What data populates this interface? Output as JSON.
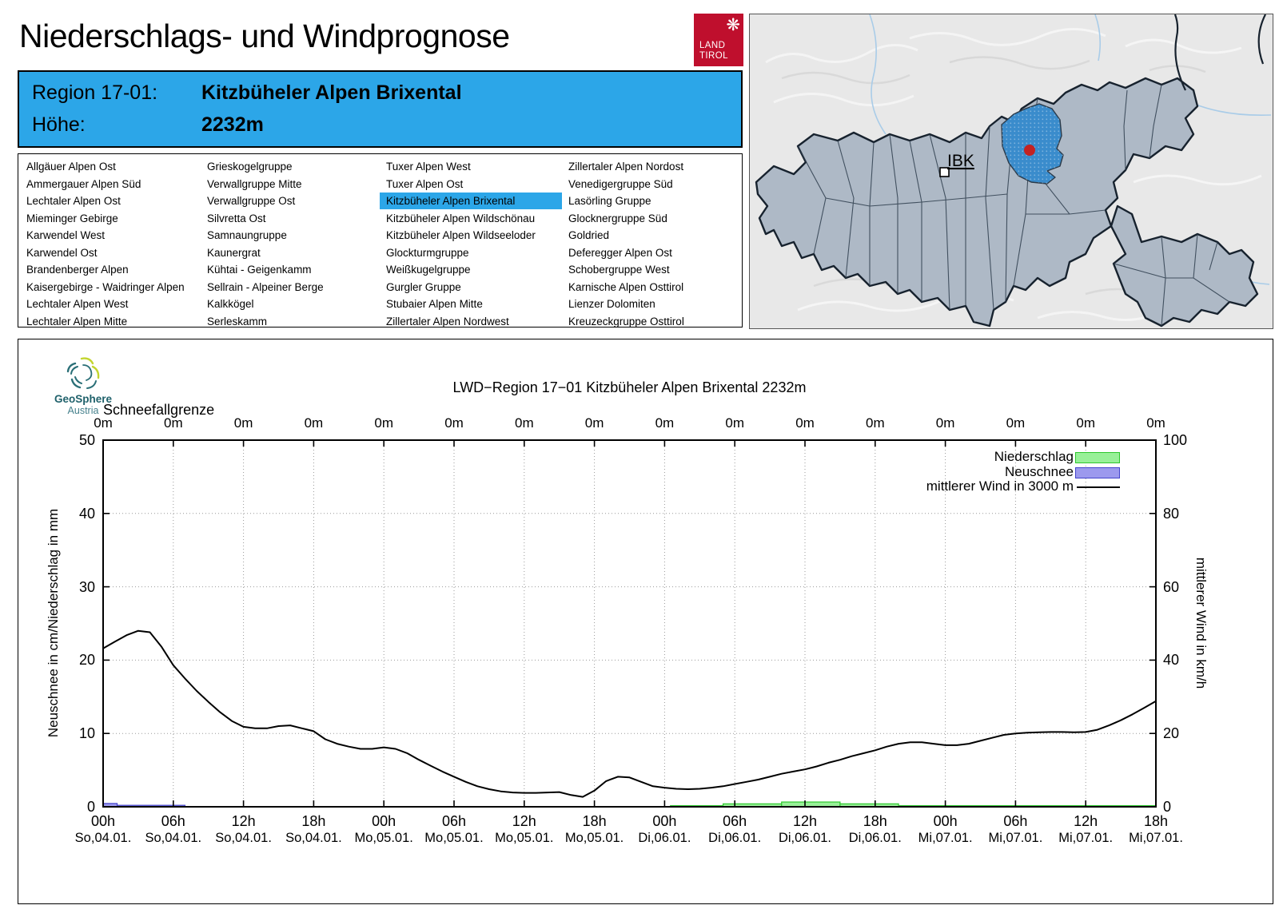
{
  "header": {
    "title": "Niederschlags- und Windprognose",
    "logo": {
      "line1": "LAND",
      "line2": "TIROL",
      "color": "#bf0f2d",
      "emblem": "eagle-icon"
    },
    "region_label": "Region 17-01:",
    "region_name": "Kitzbüheler Alpen Brixental",
    "altitude_label": "Höhe:",
    "altitude_value": "2232m",
    "box_color": "#2ca6e8"
  },
  "region_list": {
    "selected": "Kitzbüheler Alpen Brixental",
    "highlight_color": "#2ca6e8",
    "columns": [
      [
        "Allgäuer Alpen Ost",
        "Ammergauer Alpen Süd",
        "Lechtaler Alpen Ost",
        "Mieminger Gebirge",
        "Karwendel West",
        "Karwendel Ost",
        "Brandenberger Alpen",
        "Kaisergebirge - Waidringer Alpen",
        "Lechtaler Alpen West",
        "Lechtaler Alpen Mitte"
      ],
      [
        "Grieskogelgruppe",
        "Verwallgruppe Mitte",
        "Verwallgruppe Ost",
        "Silvretta Ost",
        "Samnaungruppe",
        "Kaunergrat",
        "Kühtai - Geigenkamm",
        "Sellrain - Alpeiner Berge",
        "Kalkkögel",
        "Serleskamm"
      ],
      [
        "Tuxer Alpen West",
        "Tuxer Alpen Ost",
        "Kitzbüheler Alpen Brixental",
        "Kitzbüheler Alpen Wildschönau",
        "Kitzbüheler Alpen Wildseeloder",
        "Glockturmgruppe",
        "Weißkugelgruppe",
        "Gurgler Gruppe",
        "Stubaier Alpen Mitte",
        "Zillertaler Alpen Nordwest"
      ],
      [
        "Zillertaler Alpen Nordost",
        "Venedigergruppe Süd",
        "Lasörling Gruppe",
        "Glocknergruppe Süd",
        "Goldried",
        "Deferegger Alpen Ost",
        "Schobergruppe West",
        "Karnische Alpen Osttirol",
        "Lienzer Dolomiten",
        "Kreuzeckgruppe Osttirol"
      ]
    ]
  },
  "map": {
    "marker_label": "IBK",
    "region_fill": "#aeb9c6",
    "selected_region_color": "#3a8ccc",
    "marker_dot_color": "#c32222"
  },
  "chart": {
    "provider": {
      "name": "GeoSphere",
      "sub": "Austria"
    },
    "title": "LWD−Region 17−01 Kitzbüheler Alpen Brixental 2232m",
    "snowline_label": "Schneefallgrenze",
    "snowline_values": [
      "0m",
      "0m",
      "0m",
      "0m",
      "0m",
      "0m",
      "0m",
      "0m",
      "0m",
      "0m",
      "0m",
      "0m",
      "0m",
      "0m",
      "0m",
      "0m"
    ],
    "ylabel_left": "Neuschnee in cm/Niederschlag in mm",
    "ylabel_right": "mittlerer Wind in km/h",
    "yticks_left": [
      50,
      40,
      30,
      20,
      10,
      0
    ],
    "yticks_right": [
      100,
      80,
      60,
      40,
      20,
      0
    ],
    "xticks_time": [
      "00h",
      "06h",
      "12h",
      "18h",
      "00h",
      "06h",
      "12h",
      "18h",
      "00h",
      "06h",
      "12h",
      "18h",
      "00h",
      "06h",
      "12h",
      "18h"
    ],
    "xticks_date": [
      "So,04.01.",
      "So,04.01.",
      "So,04.01.",
      "So,04.01.",
      "Mo,05.01.",
      "Mo,05.01.",
      "Mo,05.01.",
      "Mo,05.01.",
      "Di,06.01.",
      "Di,06.01.",
      "Di,06.01.",
      "Di,06.01.",
      "Mi,07.01.",
      "Mi,07.01.",
      "Mi,07.01.",
      "Mi,07.01."
    ],
    "legend": [
      {
        "label": "Niederschlag",
        "type": "box",
        "fill": "#98f098",
        "stroke": "#2dc82d"
      },
      {
        "label": "Neuschnee",
        "type": "box",
        "fill": "#9c99ee",
        "stroke": "#4444cc"
      },
      {
        "label": "mittlerer Wind in 3000 m",
        "type": "line",
        "stroke": "#000000"
      }
    ]
  },
  "chart_data": {
    "type": "bar",
    "subtype": "composite-bar-and-line",
    "title": "LWD−Region 17−01 Kitzbüheler Alpen Brixental 2232m",
    "x_unit": "hours from So 04.01. 00h",
    "x_range": [
      0,
      90
    ],
    "x_tick_step_h": 6,
    "grid": true,
    "legend_position": "top-right",
    "axis_left": {
      "label": "Neuschnee in cm/Niederschlag in mm",
      "range": [
        0,
        50
      ]
    },
    "axis_right": {
      "label": "mittlerer Wind in km/h",
      "range": [
        0,
        100
      ]
    },
    "snowline_row": {
      "label": "Schneefallgrenze",
      "values": [
        "0m",
        "0m",
        "0m",
        "0m",
        "0m",
        "0m",
        "0m",
        "0m",
        "0m",
        "0m",
        "0m",
        "0m",
        "0m",
        "0m",
        "0m",
        "0m"
      ]
    },
    "series": [
      {
        "name": "Niederschlag",
        "type": "bar-steps",
        "unit": "mm",
        "axis": "left",
        "segments_start_end_value": [
          [
            48.5,
            53,
            0.15
          ],
          [
            53,
            58,
            0.4
          ],
          [
            58,
            63,
            0.65
          ],
          [
            63,
            68,
            0.4
          ],
          [
            68,
            90,
            0.15
          ]
        ]
      },
      {
        "name": "Neuschnee",
        "type": "bar-steps",
        "unit": "cm",
        "axis": "left",
        "segments_start_end_value": [
          [
            0,
            1.2,
            0.45
          ],
          [
            1.2,
            7,
            0.2
          ]
        ]
      },
      {
        "name": "mittlerer Wind in 3000 m",
        "type": "line",
        "unit": "km/h",
        "axis": "right",
        "x_start_h": 0,
        "x_step_h": 1,
        "values": [
          43.2,
          45.0,
          46.8,
          48.0,
          47.6,
          43.6,
          38.6,
          35.0,
          31.6,
          28.6,
          25.8,
          23.4,
          21.8,
          21.4,
          21.4,
          22.0,
          22.2,
          21.4,
          20.6,
          18.4,
          17.2,
          16.4,
          15.8,
          15.8,
          16.2,
          15.8,
          14.6,
          12.8,
          11.2,
          9.6,
          8.2,
          6.8,
          5.6,
          4.8,
          4.2,
          3.9,
          3.8,
          3.8,
          3.9,
          4.0,
          3.2,
          2.7,
          4.4,
          7.0,
          8.2,
          8.0,
          6.8,
          5.6,
          5.2,
          4.9,
          4.8,
          4.9,
          5.2,
          5.6,
          6.2,
          6.8,
          7.4,
          8.2,
          9.0,
          9.6,
          10.2,
          11.0,
          12.0,
          12.8,
          13.8,
          14.6,
          15.4,
          16.4,
          17.2,
          17.6,
          17.6,
          17.2,
          16.8,
          16.8,
          17.2,
          18.0,
          18.8,
          19.6,
          20.0,
          20.2,
          20.3,
          20.4,
          20.4,
          20.3,
          20.4,
          21.0,
          22.2,
          23.6,
          25.2,
          27.0,
          28.8
        ]
      }
    ]
  }
}
